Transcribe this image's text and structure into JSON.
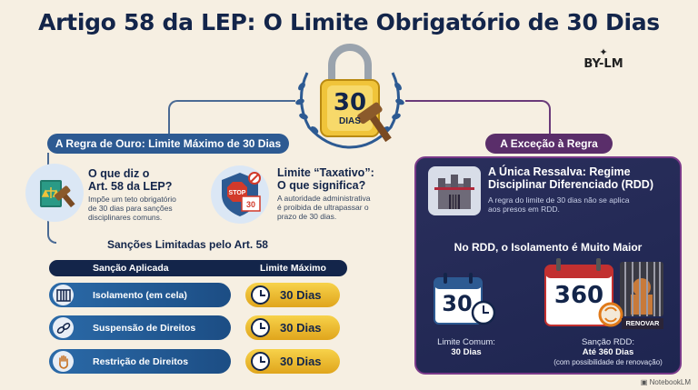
{
  "title": "Artigo 58 da LEP: O Limite Obrigatório de 30 Dias",
  "brand": {
    "name": "BY-LM"
  },
  "badge": {
    "number": "30",
    "unit": "DIAS"
  },
  "left_section": {
    "header": "A Regra de Ouro: Limite Máximo de 30 Dias",
    "item1": {
      "title_line1": "O que diz o",
      "title_line2": "Art. 58 da LEP?",
      "text_line1": "Impõe um teto obrigatório",
      "text_line2": "de 30 dias para sanções",
      "text_line3": "disciplinares comuns."
    },
    "item2": {
      "title_line1": "Limite “Taxativo”:",
      "title_line2": "O que significa?",
      "text_line1": "A autoridade administrativa",
      "text_line2": "é proibida de ultrapassar o",
      "text_line3": "prazo de 30 dias.",
      "stop_text": "STOP",
      "sign_number": "30"
    },
    "sanctions_title": "Sanções Limitadas pelo Art. 58",
    "table": {
      "col1": "Sanção Aplicada",
      "col2": "Limite Máximo",
      "rows": [
        {
          "sanction": "Isolamento (em cela)",
          "limit": "30 Dias"
        },
        {
          "sanction": "Suspensão de Direitos",
          "limit": "30 Dias"
        },
        {
          "sanction": "Restrição de Direitos",
          "limit": "30 Dias"
        }
      ]
    }
  },
  "right_section": {
    "header": "A Exceção à Regra",
    "title_line1": "A Única Ressalva: Regime",
    "title_line2": "Disciplinar Diferenciado (RDD)",
    "text_line1": "A regra do limite de 30 dias não se aplica",
    "text_line2": "aos presos em RDD.",
    "subtitle": "No RDD, o Isolamento é Muito Maior",
    "calendar1": {
      "number": "30",
      "cap_line1": "Limite Comum:",
      "cap_line2": "30 Dias"
    },
    "calendar2": {
      "number": "360",
      "renew": "RENOVAR",
      "cap_line1": "Sanção RDD:",
      "cap_line2": "Até 360 Dias",
      "cap_line3": "(com possibilidade de renovação)"
    }
  },
  "footer": "NotebookLM",
  "colors": {
    "navy": "#13254a",
    "blue": "#2d5a92",
    "gold": "#e8b428",
    "purple": "#5a2e6a",
    "background": "#f6efe2"
  }
}
